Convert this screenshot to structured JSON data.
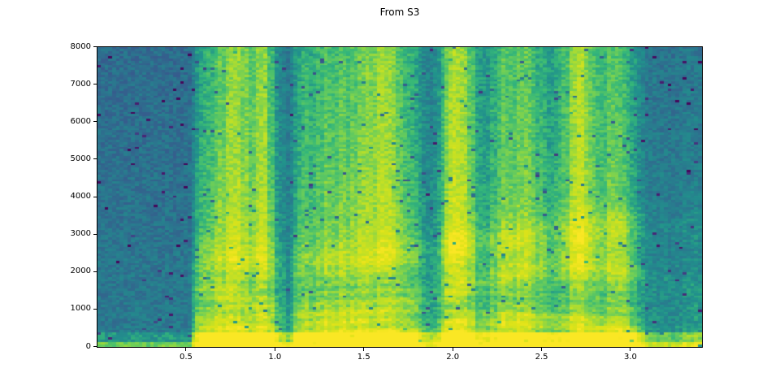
{
  "chart_data": {
    "type": "heatmap",
    "subtype": "spectrogram",
    "title": "From S3",
    "xlabel": "",
    "ylabel": "",
    "xlim": [
      0,
      3.4
    ],
    "ylim": [
      0,
      8000
    ],
    "x_ticks": [
      0.5,
      1.0,
      1.5,
      2.0,
      2.5,
      3.0
    ],
    "x_tick_labels": [
      "0.5",
      "1.0",
      "1.5",
      "2.0",
      "2.5",
      "3.0"
    ],
    "y_ticks": [
      0,
      1000,
      2000,
      3000,
      4000,
      5000,
      6000,
      7000,
      8000
    ],
    "y_tick_labels": [
      "0",
      "1000",
      "2000",
      "3000",
      "4000",
      "5000",
      "6000",
      "7000",
      "8000"
    ],
    "grid": false,
    "legend": "none",
    "colormap": "viridis",
    "colormap_stops": [
      {
        "pos": 0.0,
        "color": "#440154"
      },
      {
        "pos": 0.1,
        "color": "#482475"
      },
      {
        "pos": 0.2,
        "color": "#414487"
      },
      {
        "pos": 0.3,
        "color": "#365c8d"
      },
      {
        "pos": 0.4,
        "color": "#2a788e"
      },
      {
        "pos": 0.5,
        "color": "#21918c"
      },
      {
        "pos": 0.6,
        "color": "#35b779"
      },
      {
        "pos": 0.7,
        "color": "#6ece58"
      },
      {
        "pos": 0.8,
        "color": "#b5de2b"
      },
      {
        "pos": 0.9,
        "color": "#dfe318"
      },
      {
        "pos": 1.0,
        "color": "#fde725"
      }
    ],
    "background_level": 0.4,
    "notes": "Speech spectrogram: silence (teal) from 0 to ~0.55 s and after ~3.1 s; voiced speech bursts with harmonic/formant structure between; broadband bright columns (fricatives) near 0.78, 0.95, 1.6, 2.0 and 2.7 s; persistent bright low-frequency strip below ~200 Hz.",
    "envelope": [
      [
        0.0,
        0.02,
        0.0
      ],
      [
        0.52,
        0.03,
        0.0
      ],
      [
        0.57,
        0.75,
        0.35
      ],
      [
        0.65,
        0.9,
        0.5
      ],
      [
        0.78,
        1.0,
        0.85
      ],
      [
        0.85,
        0.9,
        0.75
      ],
      [
        0.95,
        0.95,
        0.8
      ],
      [
        1.02,
        0.5,
        0.3
      ],
      [
        1.08,
        0.25,
        0.12
      ],
      [
        1.15,
        0.85,
        0.45
      ],
      [
        1.3,
        0.9,
        0.5
      ],
      [
        1.45,
        1.0,
        0.55
      ],
      [
        1.57,
        0.95,
        0.9
      ],
      [
        1.63,
        1.0,
        1.0
      ],
      [
        1.72,
        0.85,
        0.6
      ],
      [
        1.8,
        0.75,
        0.4
      ],
      [
        1.87,
        0.3,
        0.15
      ],
      [
        1.93,
        0.6,
        0.5
      ],
      [
        2.0,
        1.0,
        1.0
      ],
      [
        2.08,
        0.95,
        0.8
      ],
      [
        2.17,
        0.55,
        0.3
      ],
      [
        2.28,
        0.85,
        0.55
      ],
      [
        2.42,
        0.95,
        0.6
      ],
      [
        2.55,
        0.7,
        0.35
      ],
      [
        2.65,
        0.85,
        0.8
      ],
      [
        2.72,
        1.0,
        1.0
      ],
      [
        2.82,
        0.85,
        0.6
      ],
      [
        2.92,
        0.95,
        0.5
      ],
      [
        3.02,
        0.7,
        0.3
      ],
      [
        3.1,
        0.25,
        0.1
      ],
      [
        3.25,
        0.2,
        0.05
      ],
      [
        3.35,
        0.3,
        0.08
      ],
      [
        3.4,
        0.3,
        0.08
      ]
    ],
    "spine_color": "#000000",
    "text_color": "#000000"
  }
}
